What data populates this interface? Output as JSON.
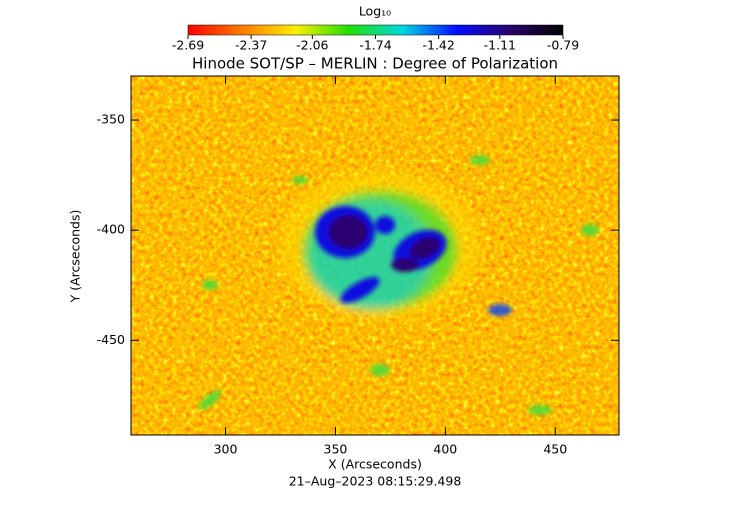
{
  "chart_data": {
    "type": "heatmap",
    "title": "Hinode SOT/SP – MERLIN : Degree of Polarization",
    "footer": "21–Aug–2023 08:15:29.498",
    "x_label": "X (Arcseconds)",
    "y_label": "Y (Arcseconds)",
    "xlim": [
      257,
      479
    ],
    "ylim": [
      -493,
      -330
    ],
    "xticks": [
      300,
      350,
      400,
      450
    ],
    "yticks": [
      -450,
      -400,
      -350
    ],
    "colorbar": {
      "label": "Log₁₀",
      "lim": [
        -2.69,
        -0.79
      ],
      "ticks": [
        -2.69,
        -2.37,
        -2.06,
        -1.74,
        -1.42,
        -1.11,
        -0.79
      ],
      "colors": [
        "#ff0000",
        "#ff7a00",
        "#ffee00",
        "#22e000",
        "#00d8e0",
        "#0010ff",
        "#2a0070",
        "#000000"
      ]
    }
  }
}
